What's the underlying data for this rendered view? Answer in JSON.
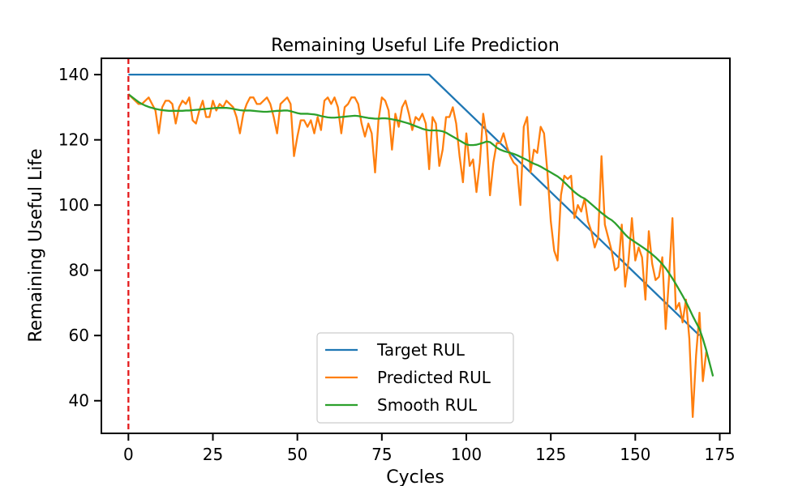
{
  "chart_data": {
    "type": "line",
    "title": "Remaining Useful Life Prediction",
    "xlabel": "Cycles",
    "ylabel": "Remaining Useful Life",
    "xlim": [
      -8,
      178
    ],
    "ylim": [
      30,
      145
    ],
    "xticks": [
      0,
      25,
      50,
      75,
      100,
      125,
      150,
      175
    ],
    "yticks": [
      40,
      60,
      80,
      100,
      120,
      140
    ],
    "grid": false,
    "legend_position": "lower-center",
    "vline": {
      "x": 0,
      "color": "#e41a1c",
      "style": "dashed"
    },
    "series": [
      {
        "name": "Target RUL",
        "color": "#1f77b4",
        "points": [
          [
            0,
            140
          ],
          [
            89,
            140
          ],
          [
            169,
            60
          ]
        ]
      },
      {
        "name": "Predicted RUL",
        "color": "#ff7f0e",
        "x_start": 0,
        "values": [
          134,
          133,
          132,
          131,
          131,
          132,
          133,
          131,
          129,
          122,
          130,
          132,
          132,
          131,
          125,
          130,
          132,
          131,
          133,
          126,
          125,
          129,
          132,
          127,
          127,
          132,
          129,
          131,
          130,
          132,
          131,
          130,
          127,
          122,
          128,
          131,
          133,
          133,
          131,
          131,
          132,
          133,
          131,
          127,
          122,
          131,
          132,
          133,
          131,
          115,
          121,
          126,
          126,
          124,
          126,
          122,
          127,
          123,
          132,
          133,
          131,
          133,
          130,
          122,
          130,
          131,
          133,
          133,
          131,
          125,
          121,
          125,
          122,
          110,
          126,
          133,
          132,
          129,
          117,
          128,
          124,
          130,
          132,
          128,
          123,
          127,
          126,
          128,
          125,
          111,
          127,
          125,
          112,
          117,
          127,
          127,
          130,
          125,
          115,
          107,
          122,
          112,
          114,
          104,
          113,
          128,
          121,
          103,
          113,
          119,
          119,
          122,
          118,
          115,
          113,
          112,
          100,
          124,
          127,
          110,
          117,
          116,
          124,
          122,
          110,
          95,
          86,
          83,
          103,
          109,
          108,
          109,
          96,
          100,
          98,
          102,
          95,
          92,
          87,
          90,
          115,
          94,
          90,
          86,
          80,
          81,
          94,
          75,
          83,
          96,
          83,
          87,
          84,
          71,
          92,
          82,
          77,
          78,
          84,
          62,
          78,
          96,
          68,
          70,
          64,
          71,
          59,
          35,
          54,
          67,
          46,
          55
        ]
      },
      {
        "name": "Smooth RUL",
        "color": "#2ca02c",
        "x_start": 0,
        "values": [
          134,
          133.2,
          132.4,
          131.6,
          131,
          130.5,
          130.1,
          129.8,
          129.5,
          129.3,
          129.1,
          129,
          128.9,
          128.9,
          128.9,
          128.9,
          128.9,
          129,
          129,
          129.1,
          129.2,
          129.3,
          129.4,
          129.5,
          129.6,
          129.7,
          129.8,
          129.8,
          129.8,
          129.8,
          129.7,
          129.5,
          129.3,
          129.1,
          129,
          129,
          129,
          128.9,
          128.8,
          128.7,
          128.6,
          128.6,
          128.7,
          128.8,
          128.9,
          128.9,
          129,
          129,
          128.8,
          128.5,
          128.2,
          128,
          128,
          128,
          127.9,
          127.8,
          127.6,
          127.3,
          127.1,
          126.9,
          126.8,
          126.8,
          126.9,
          127,
          127.1,
          127.2,
          127.3,
          127.4,
          127.3,
          127.1,
          126.9,
          126.7,
          126.6,
          126.5,
          126.5,
          126.6,
          126.6,
          126.5,
          126.3,
          126.1,
          125.9,
          125.6,
          125.3,
          125,
          124.6,
          124.2,
          123.8,
          123.4,
          123.1,
          122.9,
          122.9,
          122.9,
          122.8,
          122.6,
          122.2,
          121.6,
          121,
          120.4,
          119.8,
          119.2,
          118.6,
          118.4,
          118.4,
          118.5,
          118.8,
          119.1,
          119.5,
          119.3,
          118.5,
          117.6,
          117,
          116.6,
          116.3,
          116,
          115.7,
          115.3,
          114.8,
          114.3,
          113.8,
          113.2,
          112.7,
          112.3,
          111.8,
          111.2,
          110.6,
          110,
          109.4,
          108.8,
          108,
          107,
          106,
          105,
          104,
          103.2,
          102.5,
          102,
          101.2,
          100.3,
          99.4,
          98.5,
          97.6,
          96.8,
          96,
          95.4,
          94.5,
          93.4,
          92.2,
          91,
          90,
          89.3,
          88.6,
          87.9,
          87.2,
          86.5,
          85.7,
          84.9,
          84,
          83,
          81.9,
          80.6,
          79.1,
          77.5,
          75.8,
          74,
          72.2,
          70.3,
          68.2,
          66,
          64,
          62,
          59,
          55.5,
          51.5,
          47.5
        ]
      }
    ]
  }
}
